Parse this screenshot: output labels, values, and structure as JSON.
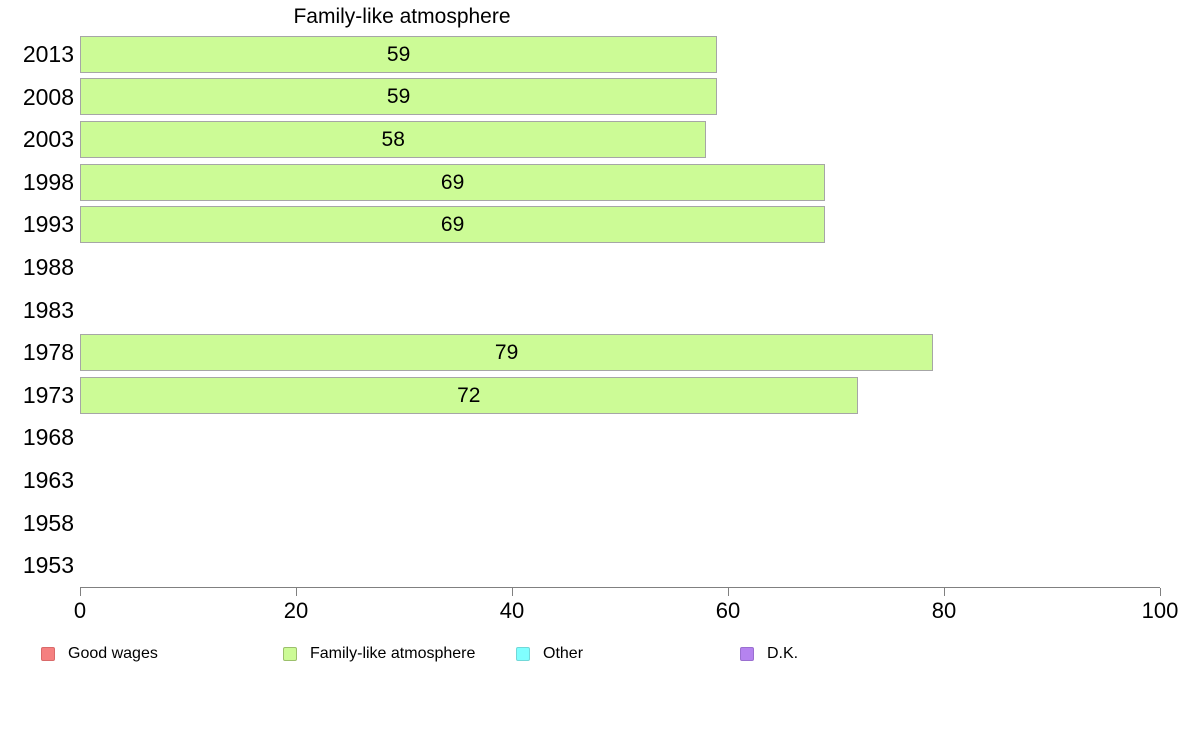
{
  "chart_data": {
    "type": "bar",
    "orientation": "horizontal",
    "title": "Family-like atmosphere",
    "categories": [
      "2013",
      "2008",
      "2003",
      "1998",
      "1993",
      "1988",
      "1983",
      "1978",
      "1973",
      "1968",
      "1963",
      "1958",
      "1953"
    ],
    "values": [
      59,
      59,
      58,
      69,
      69,
      null,
      null,
      79,
      72,
      null,
      null,
      null,
      null
    ],
    "xlabel": "",
    "ylabel": "",
    "xlim": [
      0,
      100
    ],
    "x_ticks": [
      0,
      20,
      40,
      60,
      80,
      100
    ],
    "grid": false,
    "bar_color": "#ccfb96",
    "bar_border_color": "#a6a6a6",
    "axis_color": "#808080",
    "legend_position": "bottom",
    "legend": [
      {
        "label": "Good wages",
        "color": "#f58080",
        "border": "#d96a6a"
      },
      {
        "label": "Family-like atmosphere",
        "color": "#ccfb96",
        "border": "#9cc06c"
      },
      {
        "label": "Other",
        "color": "#80ffff",
        "border": "#72d8d8"
      },
      {
        "label": "D.K.",
        "color": "#b583ef",
        "border": "#9a6fd0"
      }
    ]
  }
}
